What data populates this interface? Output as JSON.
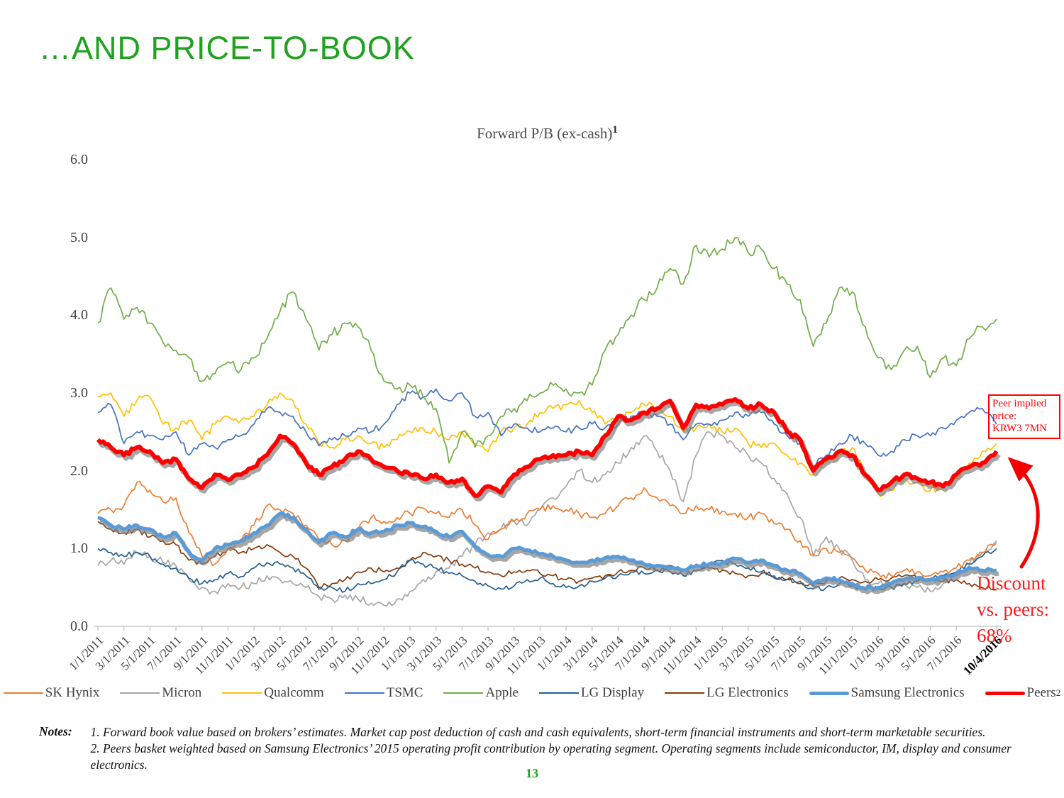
{
  "slide": {
    "title": "…AND PRICE-TO-BOOK",
    "page_number": "13",
    "accent_green": "#1FA21F"
  },
  "notes": {
    "label": "Notes:",
    "lines": [
      "1. Forward book value based on brokers’ estimates. Market cap post deduction of cash and cash equivalents, short-term financial instruments and short-term marketable securities.",
      "2. Peers basket weighted based on Samsung Electronics’ 2015 operating profit contribution by operating segment. Operating segments include semiconductor, IM, display and consumer electronics."
    ]
  },
  "annotations": {
    "peer_implied": {
      "lines": [
        "Peer implied",
        "price:",
        "KRW3 7MN"
      ],
      "color": "#ff0000"
    },
    "discount": {
      "lines": [
        "Discount",
        "vs. peers:",
        "68%"
      ],
      "color": "#ff1a1a"
    }
  },
  "chart_data": {
    "type": "line",
    "title": "Forward P/B (ex-cash)",
    "title_superscript": "1",
    "ylim": [
      0,
      6
    ],
    "y_ticks": [
      "6.0",
      "5.0",
      "4.0",
      "3.0",
      "2.0",
      "1.0",
      "0.0"
    ],
    "x_tick_labels": [
      "1/1/2011",
      "3/1/2011",
      "5/1/2011",
      "7/1/2011",
      "9/1/2011",
      "11/1/2011",
      "1/1/2012",
      "3/1/2012",
      "5/1/2012",
      "7/1/2012",
      "9/1/2012",
      "11/1/2012",
      "1/1/2013",
      "3/1/2013",
      "5/1/2013",
      "7/1/2013",
      "9/1/2013",
      "11/1/2013",
      "1/1/2014",
      "3/1/2014",
      "5/1/2014",
      "7/1/2014",
      "9/1/2014",
      "11/1/2014",
      "1/1/2015",
      "3/1/2015",
      "5/1/2015",
      "7/1/2015",
      "9/1/2015",
      "11/1/2015",
      "1/1/2016",
      "3/1/2016",
      "5/1/2016",
      "7/1/2016",
      "10/4/2016"
    ],
    "x_unit": "monthly samples Jan 2011 – Oct 4 2016",
    "grid": false,
    "legend_position": "bottom",
    "series": [
      {
        "name": "SK Hynix",
        "color": "#ED7D31",
        "thick": false,
        "shadow": false,
        "noise": 0.05,
        "values": [
          1.45,
          1.5,
          1.55,
          1.85,
          1.75,
          1.6,
          1.65,
          1.2,
          0.9,
          0.8,
          1.0,
          1.1,
          1.3,
          1.55,
          1.5,
          1.45,
          1.3,
          1.12,
          1.05,
          1.1,
          1.25,
          1.4,
          1.35,
          1.4,
          1.45,
          1.52,
          1.45,
          1.4,
          1.5,
          1.3,
          1.12,
          1.25,
          1.35,
          1.45,
          1.5,
          1.55,
          1.5,
          1.45,
          1.4,
          1.45,
          1.55,
          1.65,
          1.78,
          1.65,
          1.55,
          1.45,
          1.55,
          1.5,
          1.48,
          1.45,
          1.4,
          1.45,
          1.32,
          1.25,
          1.1,
          0.92,
          1.0,
          0.95,
          0.88,
          0.72,
          0.68,
          0.65,
          0.72,
          0.7,
          0.65,
          0.7,
          0.75,
          0.85,
          0.95,
          1.07
        ]
      },
      {
        "name": "Micron",
        "color": "#A6A6A6",
        "thick": false,
        "shadow": false,
        "noise": 0.055,
        "values": [
          0.78,
          0.85,
          0.8,
          0.95,
          0.9,
          0.82,
          0.78,
          0.6,
          0.5,
          0.45,
          0.55,
          0.5,
          0.55,
          0.65,
          0.6,
          0.55,
          0.5,
          0.38,
          0.35,
          0.4,
          0.35,
          0.3,
          0.27,
          0.35,
          0.45,
          0.6,
          0.7,
          0.75,
          0.9,
          1.05,
          1.2,
          1.25,
          1.35,
          1.3,
          1.5,
          1.65,
          1.8,
          2.0,
          1.85,
          1.95,
          2.1,
          2.3,
          2.45,
          2.25,
          2.0,
          1.6,
          2.2,
          2.5,
          2.45,
          2.3,
          2.2,
          2.1,
          1.9,
          1.7,
          1.4,
          0.9,
          1.15,
          1.0,
          0.85,
          0.6,
          0.55,
          0.5,
          0.55,
          0.5,
          0.45,
          0.55,
          0.65,
          0.8,
          0.95,
          1.1
        ]
      },
      {
        "name": "Qualcomm",
        "color": "#FFC000",
        "thick": false,
        "shadow": false,
        "noise": 0.05,
        "values": [
          2.95,
          3.0,
          2.7,
          2.9,
          2.95,
          2.6,
          2.55,
          2.65,
          2.4,
          2.6,
          2.7,
          2.65,
          2.7,
          2.85,
          3.0,
          2.9,
          2.6,
          2.35,
          2.3,
          2.4,
          2.45,
          2.35,
          2.3,
          2.4,
          2.5,
          2.55,
          2.5,
          2.4,
          2.5,
          2.35,
          2.25,
          2.5,
          2.55,
          2.6,
          2.75,
          2.8,
          2.85,
          2.9,
          2.75,
          2.6,
          2.65,
          2.75,
          2.85,
          2.8,
          2.7,
          2.5,
          2.55,
          2.6,
          2.5,
          2.55,
          2.35,
          2.3,
          2.35,
          2.2,
          2.1,
          1.95,
          2.1,
          2.2,
          2.3,
          1.95,
          1.7,
          1.75,
          1.9,
          1.85,
          1.75,
          1.8,
          1.9,
          2.1,
          2.25,
          2.35
        ]
      },
      {
        "name": "TSMC",
        "color": "#4472C4",
        "thick": false,
        "shadow": false,
        "noise": 0.045,
        "values": [
          2.75,
          2.85,
          2.35,
          2.5,
          2.45,
          2.4,
          2.5,
          2.2,
          2.35,
          2.3,
          2.4,
          2.45,
          2.6,
          2.8,
          2.75,
          2.7,
          2.5,
          2.32,
          2.4,
          2.45,
          2.55,
          2.5,
          2.6,
          2.85,
          3.0,
          2.95,
          3.05,
          2.9,
          3.0,
          2.7,
          2.75,
          2.45,
          2.6,
          2.55,
          2.5,
          2.55,
          2.5,
          2.55,
          2.6,
          2.55,
          2.6,
          2.7,
          2.75,
          2.7,
          2.6,
          2.4,
          2.6,
          2.6,
          2.65,
          2.75,
          2.7,
          2.75,
          2.6,
          2.45,
          2.35,
          2.05,
          2.2,
          2.35,
          2.45,
          2.35,
          2.2,
          2.25,
          2.4,
          2.45,
          2.45,
          2.55,
          2.65,
          2.75,
          2.8,
          2.6
        ]
      },
      {
        "name": "Apple",
        "color": "#70AD47",
        "thick": false,
        "shadow": false,
        "noise": 0.07,
        "values": [
          3.9,
          4.35,
          3.95,
          4.1,
          3.9,
          3.65,
          3.55,
          3.45,
          3.15,
          3.25,
          3.4,
          3.3,
          3.45,
          3.7,
          4.05,
          4.3,
          3.95,
          3.55,
          3.75,
          3.9,
          3.85,
          3.55,
          3.15,
          3.05,
          3.1,
          2.95,
          2.8,
          2.1,
          2.5,
          2.3,
          2.45,
          2.7,
          2.8,
          2.9,
          3.0,
          3.1,
          3.05,
          3.0,
          3.1,
          3.55,
          3.75,
          4.0,
          4.2,
          4.35,
          4.6,
          4.4,
          4.9,
          4.75,
          4.85,
          5.0,
          4.8,
          4.85,
          4.6,
          4.4,
          4.2,
          3.6,
          3.9,
          4.35,
          4.3,
          3.85,
          3.45,
          3.3,
          3.55,
          3.6,
          3.2,
          3.45,
          3.35,
          3.7,
          3.85,
          3.95
        ]
      },
      {
        "name": "LG Display",
        "color": "#255E91",
        "thick": false,
        "shadow": false,
        "noise": 0.035,
        "values": [
          1.0,
          0.95,
          0.9,
          0.95,
          0.9,
          0.8,
          0.75,
          0.62,
          0.55,
          0.6,
          0.68,
          0.64,
          0.75,
          0.82,
          0.8,
          0.75,
          0.65,
          0.48,
          0.5,
          0.45,
          0.55,
          0.55,
          0.6,
          0.7,
          0.85,
          0.8,
          0.75,
          0.68,
          0.65,
          0.58,
          0.52,
          0.48,
          0.52,
          0.6,
          0.62,
          0.55,
          0.5,
          0.52,
          0.58,
          0.62,
          0.65,
          0.7,
          0.68,
          0.72,
          0.7,
          0.65,
          0.72,
          0.8,
          0.85,
          0.8,
          0.75,
          0.7,
          0.65,
          0.6,
          0.55,
          0.48,
          0.5,
          0.55,
          0.52,
          0.5,
          0.48,
          0.5,
          0.55,
          0.58,
          0.6,
          0.65,
          0.7,
          0.8,
          0.9,
          1.0
        ]
      },
      {
        "name": "LG Electronics",
        "color": "#843C0C",
        "thick": false,
        "shadow": false,
        "noise": 0.035,
        "values": [
          1.35,
          1.25,
          1.2,
          1.25,
          1.15,
          1.1,
          1.05,
          0.85,
          0.8,
          0.9,
          1.0,
          0.95,
          1.0,
          1.05,
          0.95,
          0.9,
          0.75,
          0.5,
          0.55,
          0.6,
          0.7,
          0.75,
          0.7,
          0.75,
          0.85,
          0.95,
          0.9,
          0.85,
          0.8,
          0.75,
          0.7,
          0.65,
          0.7,
          0.72,
          0.68,
          0.65,
          0.6,
          0.58,
          0.62,
          0.65,
          0.7,
          0.72,
          0.75,
          0.72,
          0.78,
          0.72,
          0.8,
          0.75,
          0.72,
          0.68,
          0.65,
          0.68,
          0.62,
          0.6,
          0.58,
          0.52,
          0.58,
          0.62,
          0.6,
          0.58,
          0.6,
          0.62,
          0.65,
          0.62,
          0.6,
          0.58,
          0.6,
          0.55,
          0.5,
          0.47
        ]
      },
      {
        "name": "Samsung Electronics",
        "color": "#5B9BD5",
        "thick": true,
        "shadow": true,
        "noise": 0.022,
        "values": [
          1.4,
          1.3,
          1.25,
          1.3,
          1.25,
          1.15,
          1.2,
          0.95,
          0.85,
          1.0,
          1.05,
          1.1,
          1.2,
          1.3,
          1.45,
          1.4,
          1.25,
          1.08,
          1.2,
          1.15,
          1.25,
          1.2,
          1.22,
          1.3,
          1.33,
          1.28,
          1.22,
          1.15,
          1.22,
          1.02,
          0.92,
          0.9,
          1.0,
          0.98,
          0.93,
          0.9,
          0.85,
          0.82,
          0.85,
          0.88,
          0.9,
          0.85,
          0.8,
          0.78,
          0.75,
          0.72,
          0.78,
          0.8,
          0.82,
          0.87,
          0.82,
          0.85,
          0.78,
          0.72,
          0.68,
          0.55,
          0.62,
          0.6,
          0.55,
          0.48,
          0.5,
          0.55,
          0.6,
          0.62,
          0.6,
          0.62,
          0.68,
          0.76,
          0.72,
          0.72
        ]
      },
      {
        "name": "Peers",
        "superscript": "2",
        "color": "#FF0000",
        "thick": true,
        "shadow": true,
        "noise": 0.028,
        "values": [
          2.4,
          2.3,
          2.2,
          2.3,
          2.25,
          2.1,
          2.15,
          1.9,
          1.78,
          1.95,
          1.88,
          1.95,
          2.05,
          2.2,
          2.45,
          2.35,
          2.1,
          1.95,
          2.05,
          2.15,
          2.25,
          2.15,
          2.05,
          2.0,
          1.95,
          1.9,
          1.95,
          1.85,
          1.9,
          1.68,
          1.8,
          1.72,
          1.95,
          2.05,
          2.15,
          2.2,
          2.2,
          2.25,
          2.2,
          2.45,
          2.7,
          2.65,
          2.75,
          2.8,
          2.9,
          2.55,
          2.85,
          2.8,
          2.85,
          2.92,
          2.8,
          2.85,
          2.75,
          2.5,
          2.4,
          2.0,
          2.15,
          2.25,
          2.2,
          1.95,
          1.75,
          1.85,
          1.95,
          1.9,
          1.85,
          1.8,
          1.95,
          2.05,
          2.1,
          2.25
        ]
      }
    ]
  }
}
